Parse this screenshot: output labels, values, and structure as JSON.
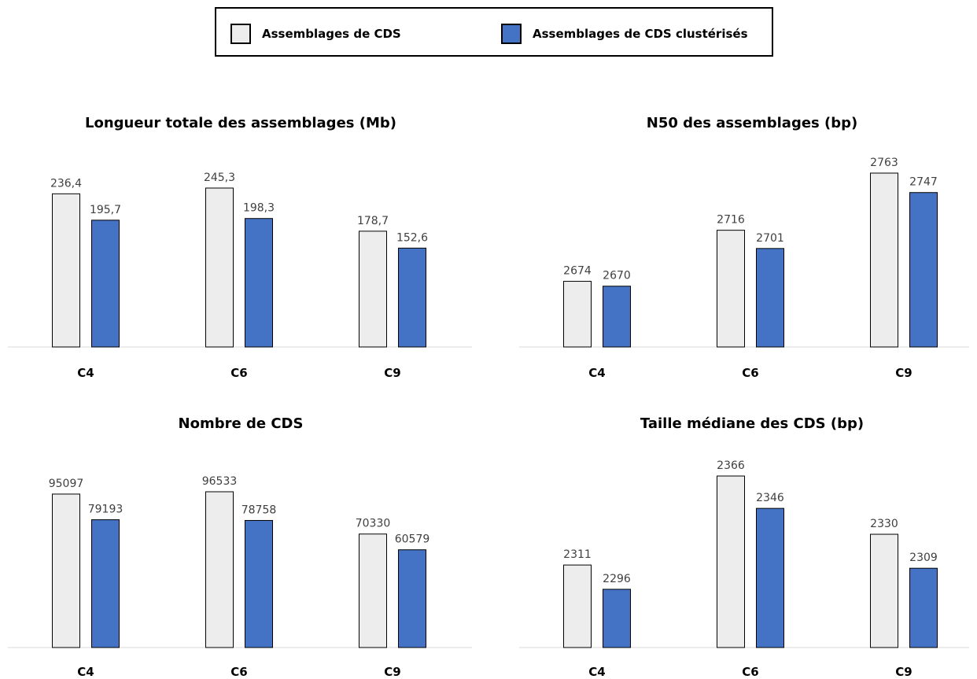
{
  "legend": {
    "series": [
      {
        "name": "Assemblages de CDS",
        "color": "#ededed"
      },
      {
        "name": "Assemblages de CDS clustérisés",
        "color": "#4472c4"
      }
    ]
  },
  "chart_data": [
    {
      "type": "bar",
      "title": "Longueur totale des assemblages (Mb)",
      "categories": [
        "C4",
        "C6",
        "C9"
      ],
      "series": [
        {
          "name": "Assemblages de CDS",
          "values": [
            236.4,
            245.3,
            178.7
          ],
          "labels": [
            "236,4",
            "245,3",
            "178,7"
          ]
        },
        {
          "name": "Assemblages de CDS clustérisés",
          "values": [
            195.7,
            198.3,
            152.6
          ],
          "labels": [
            "195,7",
            "198,3",
            "152,6"
          ]
        }
      ],
      "ylim": [
        0,
        245.3
      ],
      "grid": false
    },
    {
      "type": "bar",
      "title": "N50 des assemblages (bp)",
      "categories": [
        "C4",
        "C6",
        "C9"
      ],
      "series": [
        {
          "name": "Assemblages de CDS",
          "values": [
            2674,
            2716,
            2763
          ],
          "labels": [
            "2674",
            "2716",
            "2763"
          ]
        },
        {
          "name": "Assemblages de CDS clustérisés",
          "values": [
            2670,
            2701,
            2747
          ],
          "labels": [
            "2670",
            "2701",
            "2747"
          ]
        }
      ],
      "ylim": [
        2620,
        2763
      ],
      "grid": false
    },
    {
      "type": "bar",
      "title": "Nombre de CDS",
      "categories": [
        "C4",
        "C6",
        "C9"
      ],
      "series": [
        {
          "name": "Assemblages de CDS",
          "values": [
            95097,
            96533,
            70330
          ],
          "labels": [
            "95097",
            "96533",
            "70330"
          ]
        },
        {
          "name": "Assemblages de CDS clustérisés",
          "values": [
            79193,
            78758,
            60579
          ],
          "labels": [
            "79193",
            "78758",
            "60579"
          ]
        }
      ],
      "ylim": [
        0,
        96533
      ],
      "grid": false
    },
    {
      "type": "bar",
      "title": "Taille médiane des CDS (bp)",
      "categories": [
        "C4",
        "C6",
        "C9"
      ],
      "series": [
        {
          "name": "Assemblages de CDS",
          "values": [
            2311,
            2366,
            2330
          ],
          "labels": [
            "2311",
            "2366",
            "2330"
          ]
        },
        {
          "name": "Assemblages de CDS clustérisés",
          "values": [
            2296,
            2346,
            2309
          ],
          "labels": [
            "2296",
            "2346",
            "2309"
          ]
        }
      ],
      "ylim": [
        2260,
        2366
      ],
      "grid": false
    }
  ]
}
